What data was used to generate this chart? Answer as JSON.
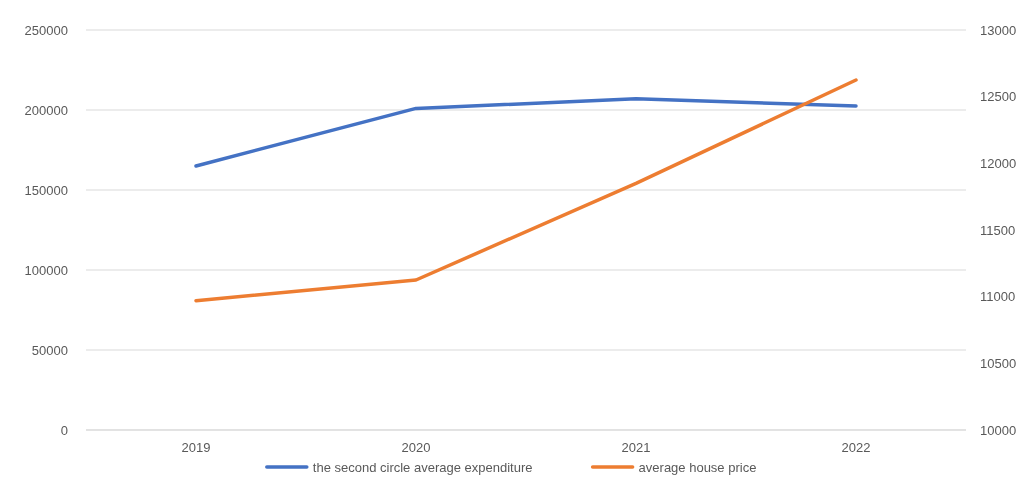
{
  "chart_data": {
    "type": "line",
    "categories": [
      "2019",
      "2020",
      "2021",
      "2022"
    ],
    "series": [
      {
        "name": "the second circle average expenditure",
        "color": "#4472c4",
        "values": [
          165000,
          201000,
          207000,
          202500
        ]
      },
      {
        "name": "average house price",
        "color": "#ed7d31",
        "values": [
          10970,
          11125,
          11850,
          12625
        ],
        "axis": "y2"
      }
    ],
    "ylim": [
      0,
      250000
    ],
    "yticks": [
      0,
      50000,
      100000,
      150000,
      200000,
      250000
    ],
    "y2lim": [
      10000,
      13000
    ],
    "y2ticks": [
      10000,
      10500,
      11000,
      11500,
      12000,
      12500,
      13000
    ],
    "grid": "y",
    "legend": "bottom",
    "marker": "none",
    "line_style": "solid"
  }
}
